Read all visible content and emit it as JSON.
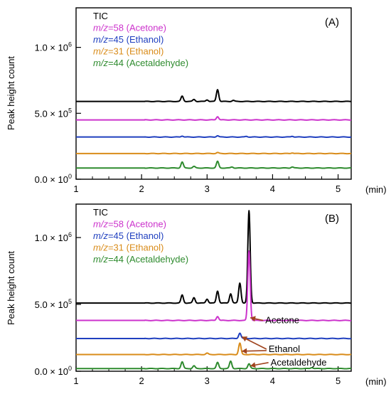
{
  "chart_data": [
    {
      "type": "line",
      "panel_label": "(A)",
      "ylabel": "Peak height count",
      "xunit": "(min)",
      "xlim": [
        1,
        5.2
      ],
      "ylim": [
        0,
        1300000
      ],
      "x_ticks": [
        "1",
        "2",
        "3",
        "4",
        "5"
      ],
      "y_ticks": [
        {
          "value": 1000000,
          "mant": "1.0 × 10",
          "exp": "6"
        },
        {
          "value": 500000,
          "mant": "5.0 × 10",
          "exp": "5"
        },
        {
          "value": 0,
          "mant": "0.0 × 10",
          "exp": "0"
        }
      ],
      "legend": [
        {
          "prefix": "",
          "text": "TIC",
          "color": "#000000"
        },
        {
          "prefix": "m/z",
          "text": "=58 (Acetone)",
          "color": "#cc33cc"
        },
        {
          "prefix": "m/z",
          "text": "=45 (Ethanol)",
          "color": "#1f3fbf"
        },
        {
          "prefix": "m/z",
          "text": "=31 (Ethanol)",
          "color": "#d98c1a"
        },
        {
          "prefix": "m/z",
          "text": "=44 (Acetaldehyde)",
          "color": "#2e8b2e"
        }
      ],
      "series": [
        {
          "color": "#000000",
          "baseline": 590000,
          "peaks": [
            {
              "x": 2.62,
              "h": 40000
            },
            {
              "x": 2.8,
              "h": 15000
            },
            {
              "x": 3.0,
              "h": 12000
            },
            {
              "x": 3.16,
              "h": 90000
            },
            {
              "x": 3.4,
              "h": 8000
            }
          ]
        },
        {
          "color": "#cc33cc",
          "baseline": 450000,
          "peaks": [
            {
              "x": 3.16,
              "h": 25000
            }
          ]
        },
        {
          "color": "#1f3fbf",
          "baseline": 320000,
          "peaks": [
            {
              "x": 2.62,
              "h": 8000
            },
            {
              "x": 3.16,
              "h": 10000
            },
            {
              "x": 3.6,
              "h": 5000
            },
            {
              "x": 4.3,
              "h": 6000
            }
          ]
        },
        {
          "color": "#d98c1a",
          "baseline": 195000,
          "peaks": [
            {
              "x": 3.16,
              "h": 7000
            },
            {
              "x": 4.3,
              "h": 5000
            }
          ]
        },
        {
          "color": "#2e8b2e",
          "baseline": 85000,
          "peaks": [
            {
              "x": 2.62,
              "h": 45000
            },
            {
              "x": 2.8,
              "h": 12000
            },
            {
              "x": 3.16,
              "h": 50000
            },
            {
              "x": 3.38,
              "h": 8000
            },
            {
              "x": 4.3,
              "h": 8000
            }
          ]
        }
      ]
    },
    {
      "type": "line",
      "panel_label": "(B)",
      "ylabel": "Peak height count",
      "xunit": "(min)",
      "xlim": [
        1,
        5.2
      ],
      "ylim": [
        0,
        1250000
      ],
      "x_ticks": [
        "1",
        "2",
        "3",
        "4",
        "5"
      ],
      "y_ticks": [
        {
          "value": 1000000,
          "mant": "1.0 × 10",
          "exp": "6"
        },
        {
          "value": 500000,
          "mant": "5.0 × 10",
          "exp": "5"
        },
        {
          "value": 0,
          "mant": "0.0 × 10",
          "exp": "0"
        }
      ],
      "legend": [
        {
          "prefix": "",
          "text": "TIC",
          "color": "#000000"
        },
        {
          "prefix": "m/z",
          "text": "=58 (Acetone)",
          "color": "#cc33cc"
        },
        {
          "prefix": "m/z",
          "text": "=45 (Ethanol)",
          "color": "#1f3fbf"
        },
        {
          "prefix": "m/z",
          "text": "=31 (Ethanol)",
          "color": "#d98c1a"
        },
        {
          "prefix": "m/z",
          "text": "=44 (Acetaldehyde)",
          "color": "#2e8b2e"
        }
      ],
      "series": [
        {
          "color": "#000000",
          "baseline": 510000,
          "peaks": [
            {
              "x": 2.62,
              "h": 60000
            },
            {
              "x": 2.8,
              "h": 40000
            },
            {
              "x": 3.0,
              "h": 30000
            },
            {
              "x": 3.16,
              "h": 90000
            },
            {
              "x": 3.36,
              "h": 70000
            },
            {
              "x": 3.5,
              "h": 150000
            },
            {
              "x": 3.64,
              "h": 690000
            }
          ]
        },
        {
          "color": "#cc33cc",
          "baseline": 380000,
          "peaks": [
            {
              "x": 3.16,
              "h": 30000
            },
            {
              "x": 3.64,
              "h": 520000
            }
          ]
        },
        {
          "color": "#1f3fbf",
          "baseline": 245000,
          "peaks": [
            {
              "x": 3.5,
              "h": 40000
            }
          ]
        },
        {
          "color": "#d98c1a",
          "baseline": 125000,
          "peaks": [
            {
              "x": 3.0,
              "h": 10000
            },
            {
              "x": 3.5,
              "h": 85000
            }
          ]
        },
        {
          "color": "#2e8b2e",
          "baseline": 20000,
          "peaks": [
            {
              "x": 2.62,
              "h": 50000
            },
            {
              "x": 2.8,
              "h": 20000
            },
            {
              "x": 3.16,
              "h": 45000
            },
            {
              "x": 3.36,
              "h": 55000
            },
            {
              "x": 3.64,
              "h": 35000
            },
            {
              "x": 4.6,
              "h": 8000
            }
          ]
        }
      ],
      "annotations": [
        {
          "name": "annotation-acetone",
          "text": "Acetone",
          "tx": 3.89,
          "ty": 380000,
          "ax": 3.66,
          "ay": 400000
        },
        {
          "name": "annotation-ethanol",
          "text": "Ethanol",
          "tx": 3.94,
          "ty": 165000,
          "ax": 3.53,
          "ay": 258000,
          "ax2": 3.53,
          "ay2": 150000
        },
        {
          "name": "annotation-acetaldehyde",
          "text": "Acetaldehyde",
          "tx": 3.97,
          "ty": 65000,
          "ax": 3.66,
          "ay": 40000
        }
      ]
    }
  ]
}
